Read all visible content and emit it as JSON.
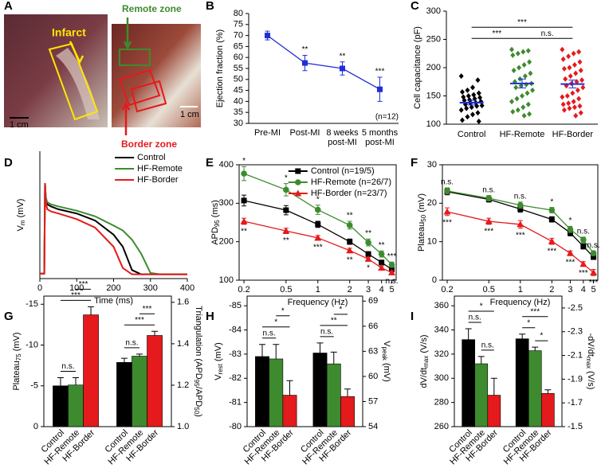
{
  "chart_data": [
    {
      "type": "image",
      "label": "A",
      "annotations": [
        "Infarct",
        "Remote zone",
        "Border zone"
      ],
      "scale_bars": [
        "1 cm",
        "1 cm"
      ]
    },
    {
      "type": "line",
      "label": "B",
      "ylabel": [
        "Ejection fraction (%)"
      ],
      "categories": [
        [
          "Pre-MI"
        ],
        [
          "Post-MI"
        ],
        [
          "8 weeks",
          "post-MI"
        ],
        [
          "5 months",
          "post-MI"
        ]
      ],
      "values": [
        70,
        57.5,
        55,
        45.5
      ],
      "errors": [
        2,
        3.5,
        3,
        5.5
      ],
      "significance": [
        null,
        "**",
        "**",
        "***"
      ],
      "color": "#1f2fd6",
      "marker": "square",
      "ylim": [
        30,
        80
      ],
      "yticks": [
        30,
        35,
        40,
        45,
        50,
        55,
        60,
        65,
        70,
        75,
        80
      ],
      "note": "(n=12)"
    },
    {
      "type": "scatter",
      "label": "C",
      "ylabel": [
        "Cell capacitance (pF)"
      ],
      "ylim": [
        100,
        300
      ],
      "yticks": [
        100,
        150,
        200,
        250,
        300
      ],
      "categories": [
        "Control",
        "HF-Remote",
        "HF-Border"
      ],
      "colors": [
        "#000000",
        "#3d8b2e",
        "#e41a1c"
      ],
      "points": [
        [
          185,
          178,
          165,
          160,
          157,
          155,
          152,
          150,
          148,
          147,
          145,
          143,
          142,
          140,
          138,
          137,
          135,
          133,
          132,
          130,
          128,
          125,
          120,
          117,
          113,
          107,
          105
        ],
        [
          232,
          230,
          228,
          225,
          222,
          210,
          205,
          200,
          195,
          190,
          185,
          180,
          175,
          172,
          170,
          168,
          165,
          160,
          155,
          150,
          145,
          140,
          135,
          130,
          125,
          122,
          118,
          115
        ],
        [
          232,
          228,
          225,
          220,
          215,
          210,
          205,
          200,
          198,
          195,
          190,
          185,
          180,
          178,
          175,
          172,
          168,
          165,
          160,
          155,
          150,
          148,
          145,
          140,
          137,
          135,
          132,
          130,
          128,
          125,
          120,
          115
        ]
      ],
      "means": [
        138,
        172,
        171
      ],
      "errors": [
        4,
        8,
        7
      ],
      "mean_color": "#1f2fd6",
      "brackets": [
        {
          "pair": [
            "Control",
            "HF-Remote"
          ],
          "label": "***"
        },
        {
          "pair": [
            "HF-Remote",
            "HF-Border"
          ],
          "label": "n.s."
        },
        {
          "pair": [
            "Control",
            "HF-Border"
          ],
          "label": "***"
        }
      ]
    },
    {
      "type": "line",
      "label": "D",
      "xlabel": "Time (ms)",
      "ylabel": [
        "V",
        "m",
        " (mV)"
      ],
      "x": [
        0,
        12,
        14,
        16,
        20,
        30,
        50,
        100,
        150,
        200,
        225,
        250,
        275,
        300,
        325,
        400
      ],
      "xlim": [
        0,
        400
      ],
      "xticks": [
        0,
        100,
        200,
        300,
        400
      ],
      "ylim": [
        -90,
        90
      ],
      "legend": "top-right",
      "series": [
        {
          "name": "Control",
          "color": "#000000",
          "values": [
            -83,
            -83,
            45,
            25,
            15,
            12,
            8,
            2,
            -8,
            -28,
            -45,
            -78,
            -84,
            -84,
            -84,
            -84
          ]
        },
        {
          "name": "HF-Remote",
          "color": "#3d8b2e",
          "values": [
            -83,
            -83,
            45,
            25,
            18,
            15,
            12,
            6,
            -2,
            -15,
            -22,
            -35,
            -55,
            -82,
            -84,
            -84
          ]
        },
        {
          "name": "HF-Border",
          "color": "#e41a1c",
          "values": [
            -83,
            -83,
            45,
            20,
            8,
            5,
            2,
            -6,
            -18,
            -45,
            -75,
            -84,
            -84,
            -84,
            -84,
            -84
          ]
        }
      ]
    },
    {
      "type": "line",
      "label": "E",
      "xlabel": "Frequency (Hz)",
      "ylabel": [
        "APD",
        "95",
        " (ms)"
      ],
      "xscale": "log",
      "x": [
        0.2,
        0.5,
        1,
        2,
        3,
        4,
        5
      ],
      "xlim": [
        0.18,
        5.5
      ],
      "xticks": [
        0.2,
        0.5,
        1,
        2,
        3,
        4,
        5
      ],
      "ylim": [
        100,
        400
      ],
      "yticks": [
        100,
        200,
        300,
        400
      ],
      "legend": "top-right",
      "frame": true,
      "series": [
        {
          "name": "Control (n=19/5)",
          "color": "#000000",
          "marker": "square",
          "values": [
            307,
            282,
            245,
            200,
            168,
            146,
            128
          ],
          "errors": [
            14,
            12,
            8,
            7,
            6,
            5,
            5
          ]
        },
        {
          "name": "HF-Remote (n=26/7)",
          "color": "#3d8b2e",
          "marker": "circle",
          "values": [
            377,
            335,
            283,
            243,
            198,
            168,
            140
          ],
          "errors": [
            18,
            16,
            12,
            10,
            9,
            8,
            7
          ],
          "significance": [
            "*",
            "*",
            "*",
            "**",
            "**",
            "**",
            "***"
          ]
        },
        {
          "name": "HF-Border (n=23/7)",
          "color": "#e41a1c",
          "marker": "triangle",
          "values": [
            253,
            228,
            210,
            177,
            155,
            132,
            120
          ],
          "errors": [
            8,
            7,
            6,
            6,
            5,
            5,
            4
          ],
          "significance": [
            "**",
            "**",
            "***",
            "**",
            "*",
            null,
            "n.s."
          ]
        }
      ]
    },
    {
      "type": "line",
      "label": "F",
      "xlabel": "Frequency (Hz)",
      "ylabel": [
        "Plateau",
        "50",
        " (mV)"
      ],
      "xscale": "log",
      "x": [
        0.2,
        0.5,
        1,
        2,
        3,
        4,
        5
      ],
      "xlim": [
        0.18,
        5.5
      ],
      "xticks": [
        0.2,
        0.5,
        1,
        2,
        3,
        4,
        5
      ],
      "ylim": [
        0,
        30
      ],
      "yticks": [
        0,
        10,
        20,
        30
      ],
      "frame": true,
      "series": [
        {
          "name": "Control",
          "color": "#000000",
          "marker": "square",
          "values": [
            23.0,
            21.0,
            18.5,
            15.8,
            12.3,
            8.8,
            6.0
          ],
          "errors": [
            0.8,
            0.7,
            0.8,
            0.7,
            0.8,
            0.7,
            0.6
          ]
        },
        {
          "name": "HF-Remote",
          "color": "#3d8b2e",
          "marker": "circle",
          "values": [
            23.2,
            21.3,
            19.5,
            18.2,
            13.2,
            10.5,
            7.0
          ],
          "errors": [
            0.8,
            0.7,
            0.8,
            0.7,
            0.8,
            0.7,
            0.6
          ],
          "significance": [
            "n.s.",
            "n.s.",
            "n.s.",
            "*",
            "*",
            "n.s.",
            "n.s."
          ]
        },
        {
          "name": "HF-Border",
          "color": "#e41a1c",
          "marker": "triangle",
          "values": [
            17.8,
            15.3,
            14.5,
            10.1,
            7.0,
            4.2,
            2.0
          ],
          "errors": [
            1.0,
            0.8,
            1.0,
            0.8,
            0.6,
            0.6,
            0.8
          ],
          "significance": [
            "***",
            "***",
            "***",
            "***",
            "***",
            "***",
            "***"
          ]
        }
      ]
    },
    {
      "type": "bar",
      "label": "G",
      "categories": [
        "Control",
        "HF-Remote",
        "HF-Border"
      ],
      "colors": [
        "#000000",
        "#3d8b2e",
        "#e41a1c"
      ],
      "ylabel": [
        "Plateau",
        "75",
        " (mV)"
      ],
      "ylim": [
        0,
        -16
      ],
      "yticks": [
        0,
        -5,
        -10,
        -15
      ],
      "y2label": [
        "Triangulation (APD",
        "95",
        "/APD",
        "50",
        ")"
      ],
      "y2lim": [
        1.0,
        1.63
      ],
      "y2ticks": [
        {
          "value": 1.0,
          "label": "1.0"
        },
        1.2,
        1.4,
        1.6
      ],
      "groups": [
        {
          "axis": "y",
          "values": [
            -5.0,
            -5.1,
            -13.7
          ],
          "errors": [
            1.0,
            0.9,
            1.0
          ],
          "brackets": [
            {
              "pair": [
                "Control",
                "HF-Remote"
              ],
              "label": "n.s."
            },
            {
              "pair": [
                "Control",
                "HF-Border"
              ],
              "label": "***"
            },
            {
              "pair": [
                "HF-Remote",
                "HF-Border"
              ],
              "label": "***"
            }
          ]
        },
        {
          "axis": "y2",
          "values": [
            1.31,
            1.34,
            1.44
          ],
          "errors": [
            0.02,
            0.01,
            0.02
          ],
          "brackets": [
            {
              "pair": [
                "Control",
                "HF-Remote"
              ],
              "label": "n.s."
            },
            {
              "pair": [
                "Control",
                "HF-Border"
              ],
              "label": "***"
            },
            {
              "pair": [
                "HF-Remote",
                "HF-Border"
              ],
              "label": "***"
            }
          ]
        }
      ]
    },
    {
      "type": "bar",
      "label": "H",
      "categories": [
        "Control",
        "HF-Remote",
        "HF-Border"
      ],
      "colors": [
        "#000000",
        "#3d8b2e",
        "#e41a1c"
      ],
      "ylabel": [
        "V",
        "rest",
        " (mV)"
      ],
      "ylim": [
        -80,
        -85.4
      ],
      "yticks": [
        -80,
        -81,
        -82,
        -83,
        -84,
        -85
      ],
      "y2label": [
        "V",
        "peak",
        " (mV)"
      ],
      "y2lim": [
        54,
        69.6
      ],
      "y2ticks": [
        54,
        57,
        60,
        63,
        66,
        69
      ],
      "groups": [
        {
          "axis": "y",
          "values": [
            -82.9,
            -82.8,
            -81.3
          ],
          "errors": [
            0.5,
            0.6,
            0.6
          ],
          "brackets": [
            {
              "pair": [
                "Control",
                "HF-Remote"
              ],
              "label": "n.s."
            },
            {
              "pair": [
                "Control",
                "HF-Border"
              ],
              "label": "*"
            },
            {
              "pair": [
                "HF-Remote",
                "HF-Border"
              ],
              "label": "*"
            }
          ]
        },
        {
          "axis": "y2",
          "values": [
            62.8,
            61.5,
            57.6
          ],
          "errors": [
            1.2,
            1.4,
            0.9
          ],
          "brackets": [
            {
              "pair": [
                "Control",
                "HF-Remote"
              ],
              "label": "n.s."
            },
            {
              "pair": [
                "Control",
                "HF-Border"
              ],
              "label": "**"
            },
            {
              "pair": [
                "HF-Remote",
                "HF-Border"
              ],
              "label": "*"
            }
          ]
        }
      ]
    },
    {
      "type": "bar",
      "label": "I",
      "categories": [
        "Control",
        "HF-Remote",
        "HF-Border"
      ],
      "colors": [
        "#000000",
        "#3d8b2e",
        "#e41a1c"
      ],
      "ylabel": [
        "dV/dt",
        "max",
        " (V/s)"
      ],
      "ylim": [
        260,
        368
      ],
      "yticks": [
        260,
        280,
        300,
        320,
        340,
        360
      ],
      "y2label": [
        "-dV/dt",
        "max",
        " (V/s)"
      ],
      "y2lim": [
        -1.5,
        -2.6
      ],
      "y2ticks": [
        -1.5,
        -1.7,
        -1.9,
        -2.1,
        -2.3,
        -2.5
      ],
      "groups": [
        {
          "axis": "y",
          "values": [
            332,
            312,
            286
          ],
          "errors": [
            9,
            6,
            14
          ],
          "brackets": [
            {
              "pair": [
                "HF-Remote",
                "HF-Border"
              ],
              "label": "n.s."
            },
            {
              "pair": [
                "Control",
                "HF-Remote"
              ],
              "label": "n.s."
            },
            {
              "pair": [
                "Control",
                "HF-Border"
              ],
              "label": "*"
            }
          ]
        },
        {
          "axis": "y2",
          "values": [
            -2.24,
            -2.14,
            -1.78
          ],
          "errors": [
            0.04,
            0.03,
            0.03
          ],
          "brackets": [
            {
              "pair": [
                "HF-Remote",
                "HF-Border"
              ],
              "label": "*"
            },
            {
              "pair": [
                "Control",
                "HF-Remote"
              ],
              "label": "*"
            },
            {
              "pair": [
                "Control",
                "HF-Border"
              ],
              "label": "***"
            }
          ]
        }
      ]
    }
  ]
}
